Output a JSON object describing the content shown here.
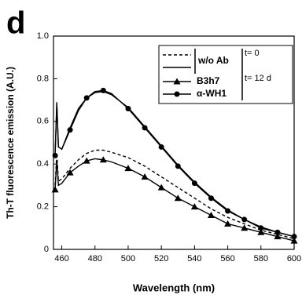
{
  "chart_data": {
    "type": "line",
    "panel_label": "d",
    "xlabel": "Wavelength (nm)",
    "ylabel": "Th-T fluorescence emission (A.U.)",
    "x": [
      456,
      457,
      458,
      460,
      465,
      470,
      475,
      480,
      485,
      490,
      500,
      510,
      520,
      530,
      540,
      550,
      560,
      570,
      580,
      590,
      600
    ],
    "series": [
      {
        "name": "w/o Ab",
        "color": "#000000",
        "dash": true,
        "marker": "none",
        "values": [
          0.3,
          0.45,
          0.32,
          0.33,
          0.38,
          0.42,
          0.45,
          0.465,
          0.465,
          0.455,
          0.43,
          0.39,
          0.34,
          0.29,
          0.24,
          0.19,
          0.15,
          0.12,
          0.09,
          0.07,
          0.05
        ]
      },
      {
        "color": "#000000",
        "dash": false,
        "marker": "none",
        "values": [
          0.45,
          0.68,
          0.48,
          0.47,
          0.57,
          0.66,
          0.71,
          0.735,
          0.74,
          0.725,
          0.665,
          0.575,
          0.485,
          0.395,
          0.315,
          0.245,
          0.185,
          0.14,
          0.105,
          0.08,
          0.06
        ]
      },
      {
        "name": "B3h7",
        "color": "#000000",
        "dash": false,
        "marker": "triangle",
        "values": [
          0.28,
          0.42,
          0.3,
          0.31,
          0.36,
          0.39,
          0.415,
          0.425,
          0.42,
          0.41,
          0.38,
          0.34,
          0.29,
          0.24,
          0.2,
          0.16,
          0.12,
          0.1,
          0.08,
          0.06,
          0.04
        ]
      },
      {
        "name": "α-WH1",
        "color": "#000000",
        "dash": false,
        "marker": "circle",
        "values": [
          0.44,
          0.69,
          0.48,
          0.47,
          0.56,
          0.65,
          0.71,
          0.74,
          0.745,
          0.73,
          0.66,
          0.57,
          0.48,
          0.39,
          0.31,
          0.24,
          0.18,
          0.14,
          0.1,
          0.08,
          0.06
        ]
      }
    ],
    "annotations": [
      "t= 0",
      "t= 12 d"
    ],
    "xlim": [
      455,
      600
    ],
    "xticks": [
      460,
      480,
      500,
      520,
      540,
      560,
      580,
      600
    ],
    "ylim": [
      0,
      1
    ],
    "yticks": [
      0,
      0.2,
      0.4,
      0.6,
      0.8,
      {
        "value": 1,
        "label": "1.0"
      }
    ],
    "grid": false
  }
}
